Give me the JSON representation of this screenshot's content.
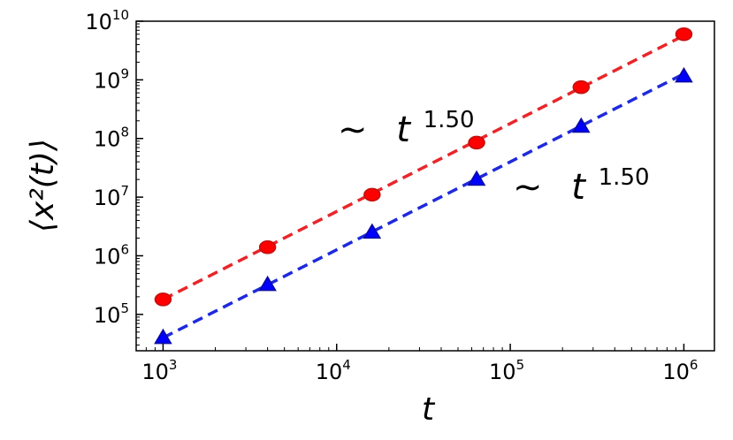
{
  "chart_data": {
    "type": "scatter",
    "x_scale": "log",
    "y_scale": "log",
    "xlim": [
      700,
      1500000
    ],
    "ylim": [
      24000,
      10000000000
    ],
    "xlabel": "t",
    "ylabel": "⟨x²(t)⟩",
    "grid": false,
    "x_ticks": [
      {
        "value": 1000,
        "base": "10",
        "exp": "3"
      },
      {
        "value": 10000,
        "base": "10",
        "exp": "4"
      },
      {
        "value": 100000,
        "base": "10",
        "exp": "5"
      },
      {
        "value": 1000000,
        "base": "10",
        "exp": "6"
      }
    ],
    "y_ticks": [
      {
        "value": 100000,
        "base": "10",
        "exp": "5"
      },
      {
        "value": 1000000,
        "base": "10",
        "exp": "6"
      },
      {
        "value": 10000000,
        "base": "10",
        "exp": "7"
      },
      {
        "value": 100000000,
        "base": "10",
        "exp": "8"
      },
      {
        "value": 1000000000,
        "base": "10",
        "exp": "9"
      },
      {
        "value": 10000000000,
        "base": "10",
        "exp": "10"
      }
    ],
    "series": [
      {
        "marker": "circle",
        "color": "#ff0000",
        "fit_color": "#e8262a",
        "x": [
          1000,
          4000,
          16000,
          64000,
          256000,
          1000000
        ],
        "y": [
          180000,
          1400000,
          11000000,
          85000000,
          750000000,
          6000000000
        ],
        "fit_slope": 1.5
      },
      {
        "marker": "triangle",
        "color": "#0000ff",
        "fit_color": "#1f2adb",
        "x": [
          1000,
          4000,
          16000,
          64000,
          256000,
          1000000
        ],
        "y": [
          40000,
          320000,
          2500000,
          20000000,
          160000000,
          1150000000
        ],
        "fit_slope": 1.5
      }
    ],
    "annotations": [
      {
        "prefix": "∼",
        "var": "t",
        "exp": "1.50",
        "series": 0
      },
      {
        "prefix": "∼",
        "var": "t",
        "exp": "1.50",
        "series": 1
      }
    ]
  }
}
